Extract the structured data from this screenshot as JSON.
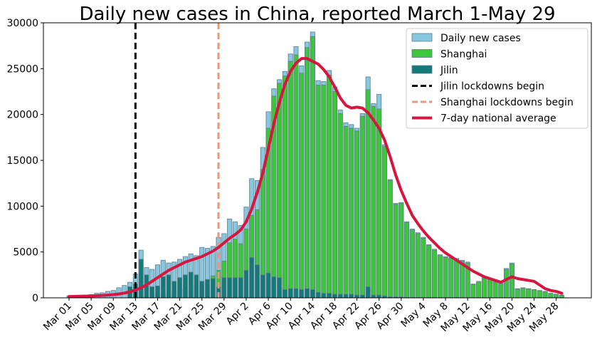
{
  "chart_data": {
    "type": "bar",
    "title": "Daily new cases in China, reported March 1-May 29",
    "xlabel": "",
    "ylabel": "",
    "ylim": [
      0,
      30000
    ],
    "grid": false,
    "legend_position": "top-right",
    "y_ticks": [
      0,
      5000,
      10000,
      15000,
      20000,
      25000,
      30000
    ],
    "x_ticks": [
      {
        "day": 0,
        "label": "Mar 01"
      },
      {
        "day": 4,
        "label": "Mar 05"
      },
      {
        "day": 8,
        "label": "Mar 09"
      },
      {
        "day": 12,
        "label": "Mar 13"
      },
      {
        "day": 16,
        "label": "Mar 17"
      },
      {
        "day": 20,
        "label": "Mar 21"
      },
      {
        "day": 24,
        "label": "Mar 25"
      },
      {
        "day": 28,
        "label": "Mar 29"
      },
      {
        "day": 32,
        "label": "Apr 2"
      },
      {
        "day": 36,
        "label": "Apr 6"
      },
      {
        "day": 40,
        "label": "Apr 10"
      },
      {
        "day": 44,
        "label": "Apr 14"
      },
      {
        "day": 48,
        "label": "Apr 18"
      },
      {
        "day": 52,
        "label": "Apr 22"
      },
      {
        "day": 56,
        "label": "Apr 26"
      },
      {
        "day": 60,
        "label": "Apr 30"
      },
      {
        "day": 64,
        "label": "May 4"
      },
      {
        "day": 68,
        "label": "May 8"
      },
      {
        "day": 72,
        "label": "May 12"
      },
      {
        "day": 76,
        "label": "May 16"
      },
      {
        "day": 80,
        "label": "May 20"
      },
      {
        "day": 84,
        "label": "May 24"
      },
      {
        "day": 88,
        "label": "May 28"
      }
    ],
    "series": [
      {
        "name": "Daily new cases",
        "kind": "bar",
        "color": "#87c7e0",
        "values": [
          200,
          230,
          250,
          300,
          350,
          500,
          550,
          700,
          800,
          1100,
          1350,
          1700,
          2600,
          5200,
          3300,
          3100,
          3600,
          4100,
          3800,
          3900,
          4200,
          4500,
          4800,
          4600,
          5500,
          5400,
          5600,
          6600,
          7000,
          8600,
          8300,
          7900,
          9900,
          13000,
          12800,
          16400,
          20300,
          22800,
          23800,
          24700,
          26600,
          27400,
          25300,
          27900,
          29000,
          23700,
          23600,
          24800,
          23000,
          20500,
          19100,
          18900,
          18500,
          20100,
          24100,
          21200,
          22200,
          16700,
          12900,
          10300,
          10400,
          8300,
          7500,
          7100,
          6600,
          5800,
          5300,
          4700,
          4500,
          4400,
          4300,
          4100,
          3900,
          1500,
          1800,
          2200,
          2100,
          1800,
          1600,
          3200,
          3800,
          1000,
          1100,
          1000,
          900,
          800,
          700,
          500,
          400,
          300
        ]
      },
      {
        "name": "Shanghai",
        "kind": "bar",
        "color": "#3cc63c",
        "values": [
          0,
          0,
          0,
          0,
          0,
          0,
          0,
          0,
          0,
          0,
          0,
          0,
          50,
          100,
          200,
          300,
          400,
          500,
          600,
          700,
          900,
          1000,
          1300,
          1500,
          1800,
          2000,
          2400,
          3000,
          4000,
          6000,
          6400,
          5900,
          7500,
          9000,
          9600,
          14000,
          18500,
          22000,
          23400,
          24200,
          25800,
          26500,
          24500,
          27300,
          28500,
          23200,
          23200,
          24300,
          22500,
          20100,
          18700,
          18500,
          18200,
          19800,
          22700,
          20900,
          20600,
          16500,
          12800,
          10200,
          10300,
          8200,
          7400,
          7000,
          6500,
          5700,
          5200,
          4600,
          4400,
          4300,
          4200,
          4000,
          3800,
          1450,
          1700,
          2100,
          2000,
          1700,
          1500,
          3100,
          3700,
          950,
          1050,
          950,
          870,
          770,
          670,
          480,
          380,
          280
        ]
      },
      {
        "name": "Jilin",
        "kind": "bar",
        "color": "#137a7a",
        "values": [
          0,
          0,
          0,
          0,
          0,
          0,
          0,
          0,
          0,
          0,
          0,
          1200,
          1500,
          4200,
          2500,
          1200,
          1300,
          2300,
          2500,
          1800,
          2200,
          2500,
          2800,
          2500,
          1800,
          2000,
          2100,
          1200,
          2200,
          2200,
          2200,
          2200,
          3000,
          4400,
          3600,
          2500,
          2700,
          2300,
          2200,
          900,
          1000,
          1000,
          900,
          1000,
          900,
          600,
          500,
          500,
          400,
          400,
          400,
          400,
          300,
          300,
          1200,
          300,
          300,
          200,
          100,
          100,
          100,
          50,
          50,
          50,
          30,
          30,
          30,
          30,
          30,
          20,
          20,
          20,
          20,
          20,
          20,
          20,
          20,
          10,
          10,
          10,
          10,
          10,
          10,
          10,
          10,
          10,
          10,
          10,
          10,
          10
        ]
      },
      {
        "name": "7-day national average",
        "kind": "line",
        "color": "#d6163f",
        "values": [
          150,
          160,
          170,
          180,
          200,
          230,
          260,
          300,
          350,
          420,
          520,
          650,
          850,
          1100,
          1400,
          1800,
          2200,
          2600,
          3000,
          3300,
          3600,
          3900,
          4100,
          4300,
          4500,
          4800,
          5100,
          5500,
          6000,
          6500,
          6900,
          7400,
          8300,
          9700,
          11500,
          13600,
          16300,
          19000,
          21300,
          23300,
          24700,
          25600,
          26100,
          26100,
          25800,
          25500,
          24900,
          24100,
          23000,
          21800,
          21000,
          20700,
          20800,
          20700,
          20200,
          19400,
          18500,
          17200,
          15400,
          13400,
          11700,
          10300,
          9000,
          8100,
          7300,
          6600,
          6000,
          5400,
          4900,
          4500,
          4100,
          3700,
          3300,
          2900,
          2600,
          2300,
          2100,
          1900,
          1700,
          2000,
          2300,
          2100,
          2000,
          1900,
          1800,
          1400,
          1000,
          800,
          700,
          500
        ]
      },
      {
        "name": "Jilin lockdowns begin",
        "kind": "vline",
        "color": "#000000",
        "x": 12
      },
      {
        "name": "Shanghai lockdowns begin",
        "kind": "vline",
        "color": "#e8977c",
        "x": 27
      }
    ]
  }
}
